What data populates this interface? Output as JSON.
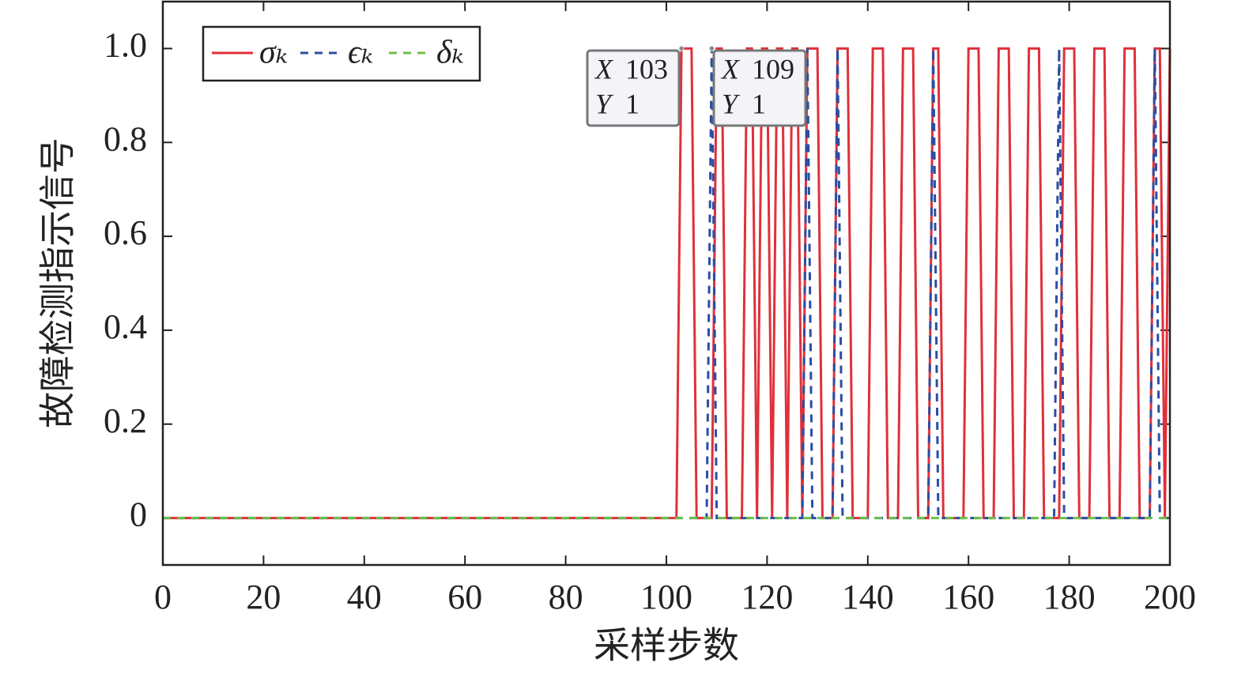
{
  "chart_data": {
    "type": "line",
    "xlabel": "采样步数",
    "ylabel": "故障检测指示信号",
    "xlim": [
      0,
      200
    ],
    "xticks": [
      0,
      20,
      40,
      60,
      80,
      100,
      120,
      140,
      160,
      180,
      200
    ],
    "ylim": [
      -0.1,
      1.1
    ],
    "yticks": [
      0,
      0.2,
      0.4,
      0.6,
      0.8,
      {
        "value": 1,
        "label": "1.0"
      }
    ],
    "legend": "upper left",
    "series": [
      {
        "name": "σₖ",
        "color": "#e0303a",
        "dash": "solid",
        "x": [
          0,
          102,
          103,
          105,
          106,
          109,
          110,
          111,
          112,
          115,
          116,
          117,
          118,
          119,
          120,
          121,
          122,
          123,
          124,
          125,
          126,
          127,
          128,
          130,
          131,
          133,
          134,
          136,
          137,
          140,
          141,
          143,
          144,
          146,
          147,
          149,
          150,
          152,
          153,
          154,
          155,
          159,
          160,
          162,
          163,
          165,
          166,
          168,
          169,
          171,
          172,
          174,
          175,
          178,
          179,
          181,
          182,
          184,
          185,
          187,
          188,
          190,
          191,
          193,
          194,
          196,
          197,
          198,
          199,
          200
        ],
        "values": [
          0,
          0,
          1,
          1,
          0,
          0,
          1,
          1,
          0,
          0,
          1,
          1,
          0,
          1,
          1,
          0,
          1,
          1,
          0,
          1,
          1,
          0,
          1,
          1,
          0,
          0,
          1,
          1,
          0,
          0,
          1,
          1,
          0,
          0,
          1,
          1,
          0,
          0,
          1,
          1,
          0,
          0,
          1,
          1,
          0,
          0,
          1,
          1,
          0,
          0,
          1,
          1,
          0,
          0,
          1,
          1,
          0,
          0,
          1,
          1,
          0,
          0,
          1,
          1,
          0,
          0,
          1,
          1,
          0,
          1
        ]
      },
      {
        "name": "ϵₖ",
        "color": "#2b4ea2",
        "dash": "dashed",
        "x": [
          0,
          108,
          109,
          110,
          127,
          128,
          129,
          133,
          134,
          135,
          152,
          153,
          154,
          177,
          178,
          179,
          196,
          197,
          198,
          200
        ],
        "values": [
          0,
          0,
          1,
          0,
          0,
          1,
          0,
          0,
          1,
          0,
          0,
          1,
          0,
          0,
          1,
          0,
          0,
          1,
          0,
          0
        ]
      },
      {
        "name": "δₖ",
        "color": "#6cbf4a",
        "dash": "dashed",
        "x": [
          0,
          200
        ],
        "values": [
          0,
          0
        ]
      }
    ],
    "datatip_labels": [
      "X",
      "Y"
    ],
    "annotations": [
      {
        "x": 103,
        "y": 1
      },
      {
        "x": 109,
        "y": 1
      }
    ]
  }
}
